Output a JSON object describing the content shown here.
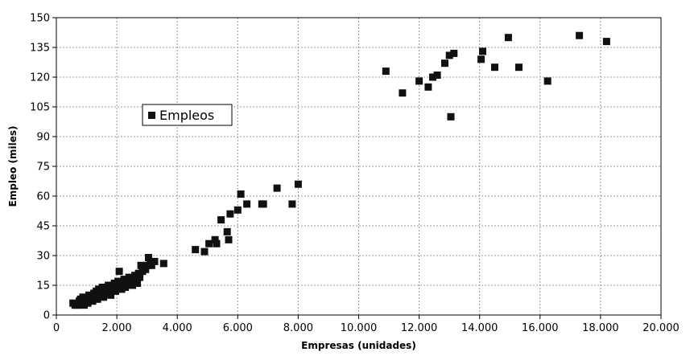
{
  "chart_data": {
    "type": "scatter",
    "title": "",
    "xlabel": "Empresas (unidades)",
    "ylabel": "Empleo (miles)",
    "xlim": [
      0,
      20000
    ],
    "ylim": [
      0,
      150
    ],
    "x_ticks": [
      "0",
      "2.000",
      "4.000",
      "6.000",
      "8.000",
      "10.000",
      "12.000",
      "14.000",
      "16.000",
      "18.000",
      "20.000"
    ],
    "y_ticks": [
      "0",
      "15",
      "30",
      "45",
      "60",
      "75",
      "90",
      "105",
      "120",
      "135",
      "150"
    ],
    "grid": true,
    "legend_position": "inside-left",
    "marker_color": "#111111",
    "series": [
      {
        "name": "Empleos",
        "points": [
          [
            550,
            6
          ],
          [
            620,
            5
          ],
          [
            700,
            5
          ],
          [
            760,
            7
          ],
          [
            800,
            8
          ],
          [
            830,
            6
          ],
          [
            880,
            9
          ],
          [
            920,
            5
          ],
          [
            960,
            7
          ],
          [
            1000,
            8
          ],
          [
            1040,
            6
          ],
          [
            1080,
            10
          ],
          [
            1120,
            8
          ],
          [
            1160,
            9
          ],
          [
            1200,
            7
          ],
          [
            1240,
            11
          ],
          [
            1280,
            9
          ],
          [
            1320,
            12
          ],
          [
            1360,
            8
          ],
          [
            1400,
            13
          ],
          [
            1440,
            10
          ],
          [
            1480,
            11
          ],
          [
            1520,
            14
          ],
          [
            1560,
            9
          ],
          [
            1600,
            12
          ],
          [
            1640,
            13
          ],
          [
            1680,
            11
          ],
          [
            1720,
            15
          ],
          [
            1760,
            12
          ],
          [
            1800,
            10
          ],
          [
            1840,
            14
          ],
          [
            1880,
            13
          ],
          [
            1920,
            16
          ],
          [
            1960,
            12
          ],
          [
            2000,
            14
          ],
          [
            2040,
            17
          ],
          [
            2080,
            22
          ],
          [
            2120,
            15
          ],
          [
            2160,
            13
          ],
          [
            2200,
            16
          ],
          [
            2240,
            18
          ],
          [
            2280,
            14
          ],
          [
            2320,
            17
          ],
          [
            2360,
            15
          ],
          [
            2400,
            19
          ],
          [
            2440,
            16
          ],
          [
            2480,
            18
          ],
          [
            2520,
            15
          ],
          [
            2560,
            17
          ],
          [
            2600,
            20
          ],
          [
            2640,
            18
          ],
          [
            2680,
            16
          ],
          [
            2720,
            21
          ],
          [
            2760,
            19
          ],
          [
            2800,
            25
          ],
          [
            2850,
            22
          ],
          [
            2900,
            24
          ],
          [
            2950,
            23
          ],
          [
            3000,
            25
          ],
          [
            3050,
            29
          ],
          [
            3100,
            26
          ],
          [
            3150,
            25
          ],
          [
            3250,
            27
          ],
          [
            3550,
            26
          ],
          [
            4600,
            33
          ],
          [
            4900,
            32
          ],
          [
            5050,
            36
          ],
          [
            5250,
            38
          ],
          [
            5300,
            36
          ],
          [
            5450,
            48
          ],
          [
            5650,
            42
          ],
          [
            5700,
            38
          ],
          [
            5750,
            51
          ],
          [
            6000,
            53
          ],
          [
            6100,
            61
          ],
          [
            6300,
            56
          ],
          [
            6800,
            56
          ],
          [
            6850,
            56
          ],
          [
            7300,
            64
          ],
          [
            7800,
            56
          ],
          [
            8000,
            66
          ],
          [
            10900,
            123
          ],
          [
            11450,
            112
          ],
          [
            12000,
            118
          ],
          [
            12300,
            115
          ],
          [
            12450,
            120
          ],
          [
            12600,
            121
          ],
          [
            12850,
            127
          ],
          [
            13000,
            131
          ],
          [
            13050,
            100
          ],
          [
            13150,
            132
          ],
          [
            14050,
            129
          ],
          [
            14100,
            133
          ],
          [
            14500,
            125
          ],
          [
            14950,
            140
          ],
          [
            15300,
            125
          ],
          [
            16250,
            118
          ],
          [
            17300,
            141
          ],
          [
            18200,
            138
          ]
        ]
      }
    ]
  }
}
